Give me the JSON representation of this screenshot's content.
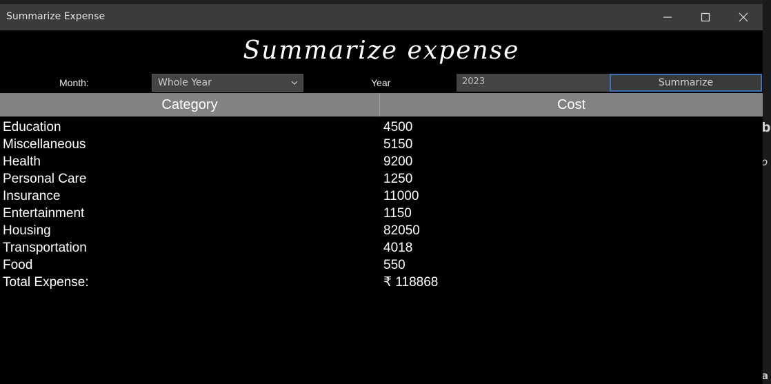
{
  "window": {
    "title": "Summarize Expense",
    "controls": {
      "minimize": "minimize-icon",
      "maximize": "maximize-icon",
      "close": "close-icon"
    }
  },
  "heading": "Summarize expense",
  "filters": {
    "month_label": "Month:",
    "month_value": "Whole Year",
    "year_label": "Year",
    "year_value": "2023",
    "summarize_label": "Summarize"
  },
  "table": {
    "columns": [
      "Category",
      "Cost"
    ],
    "rows": [
      {
        "category": "Education",
        "cost": "4500"
      },
      {
        "category": "Miscellaneous",
        "cost": "5150"
      },
      {
        "category": "Health",
        "cost": "9200"
      },
      {
        "category": "Personal Care",
        "cost": "1250"
      },
      {
        "category": "Insurance",
        "cost": "11000"
      },
      {
        "category": "Entertainment",
        "cost": "1150"
      },
      {
        "category": "Housing",
        "cost": "82050"
      },
      {
        "category": "Transportation",
        "cost": "4018"
      },
      {
        "category": "Food",
        "cost": "550"
      }
    ],
    "total_label": "Total Expense:",
    "total_value": "₹ 118868"
  },
  "colors": {
    "accent": "#3d72b8",
    "header_bg": "#828282",
    "titlebar_bg": "#3b3b3b"
  }
}
